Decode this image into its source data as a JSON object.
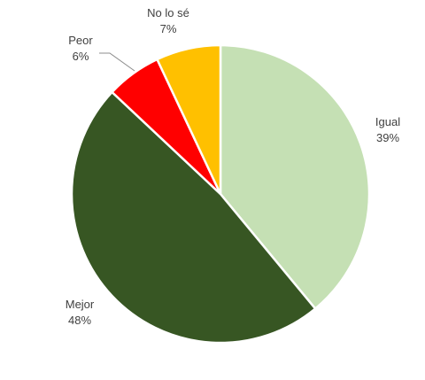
{
  "chart_data": {
    "type": "pie",
    "start_angle_deg": 0,
    "direction": "clockwise",
    "legend": "none",
    "slices": [
      {
        "label": "Igual",
        "value": 39,
        "value_label": "39%",
        "color": "#c5e0b4"
      },
      {
        "label": "Mejor",
        "value": 48,
        "value_label": "48%",
        "color": "#375623"
      },
      {
        "label": "Peor",
        "value": 6,
        "value_label": "6%",
        "color": "#ff0000"
      },
      {
        "label": "No lo sé",
        "value": 7,
        "value_label": "7%",
        "color": "#ffc000"
      }
    ]
  }
}
